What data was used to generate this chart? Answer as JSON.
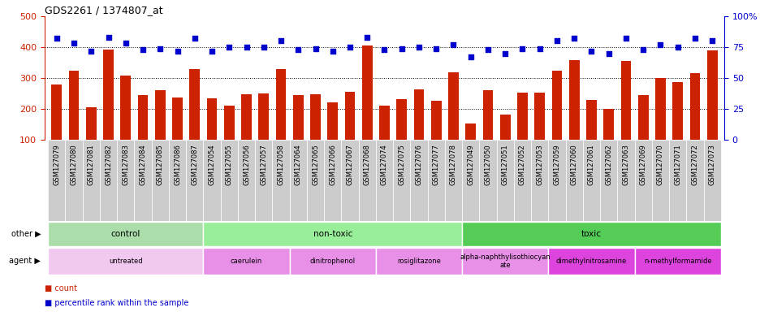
{
  "title": "GDS2261 / 1374807_at",
  "samples": [
    "GSM127079",
    "GSM127080",
    "GSM127081",
    "GSM127082",
    "GSM127083",
    "GSM127084",
    "GSM127085",
    "GSM127086",
    "GSM127087",
    "GSM127054",
    "GSM127055",
    "GSM127056",
    "GSM127057",
    "GSM127058",
    "GSM127064",
    "GSM127065",
    "GSM127066",
    "GSM127067",
    "GSM127068",
    "GSM127074",
    "GSM127075",
    "GSM127076",
    "GSM127077",
    "GSM127078",
    "GSM127049",
    "GSM127050",
    "GSM127051",
    "GSM127052",
    "GSM127053",
    "GSM127059",
    "GSM127060",
    "GSM127061",
    "GSM127062",
    "GSM127063",
    "GSM127069",
    "GSM127070",
    "GSM127071",
    "GSM127072",
    "GSM127073"
  ],
  "counts": [
    278,
    323,
    205,
    393,
    308,
    245,
    261,
    238,
    328,
    234,
    210,
    248,
    249,
    328,
    245,
    248,
    221,
    254,
    405,
    211,
    231,
    262,
    227,
    318,
    152,
    260,
    182,
    252,
    252,
    323,
    357,
    229,
    200,
    355,
    245,
    300,
    288,
    315,
    390
  ],
  "percentiles": [
    82,
    78,
    72,
    83,
    78,
    73,
    74,
    72,
    82,
    72,
    75,
    75,
    75,
    80,
    73,
    74,
    72,
    75,
    83,
    73,
    74,
    75,
    74,
    77,
    67,
    73,
    70,
    74,
    74,
    80,
    82,
    72,
    70,
    82,
    73,
    77,
    75,
    82,
    80
  ],
  "bar_color": "#cc2200",
  "dot_color": "#0000cc",
  "ylim_left": [
    100,
    500
  ],
  "ylim_right": [
    0,
    100
  ],
  "yticks_left": [
    100,
    200,
    300,
    400,
    500
  ],
  "yticks_right": [
    0,
    25,
    50,
    75,
    100
  ],
  "ytick_right_labels": [
    "0",
    "25",
    "50",
    "75",
    "100%"
  ],
  "grid_lines": [
    200,
    300,
    400
  ],
  "groups_other": [
    {
      "label": "control",
      "start": 0,
      "end": 8,
      "color": "#aaddaa"
    },
    {
      "label": "non-toxic",
      "start": 9,
      "end": 23,
      "color": "#99ee99"
    },
    {
      "label": "toxic",
      "start": 24,
      "end": 38,
      "color": "#55cc55"
    }
  ],
  "groups_agent": [
    {
      "label": "untreated",
      "start": 0,
      "end": 8,
      "color": "#f0c8f0"
    },
    {
      "label": "caerulein",
      "start": 9,
      "end": 13,
      "color": "#e890e8"
    },
    {
      "label": "dinitrophenol",
      "start": 14,
      "end": 18,
      "color": "#e890e8"
    },
    {
      "label": "rosiglitazone",
      "start": 19,
      "end": 23,
      "color": "#e890e8"
    },
    {
      "label": "alpha-naphthylisothiocyan\nate",
      "start": 24,
      "end": 28,
      "color": "#e890e8"
    },
    {
      "label": "dimethylnitrosamine",
      "start": 29,
      "end": 33,
      "color": "#dd44dd"
    },
    {
      "label": "n-methylformamide",
      "start": 34,
      "end": 38,
      "color": "#dd44dd"
    }
  ],
  "xtick_bg_color": "#cccccc",
  "xtick_sep_color": "#999999"
}
